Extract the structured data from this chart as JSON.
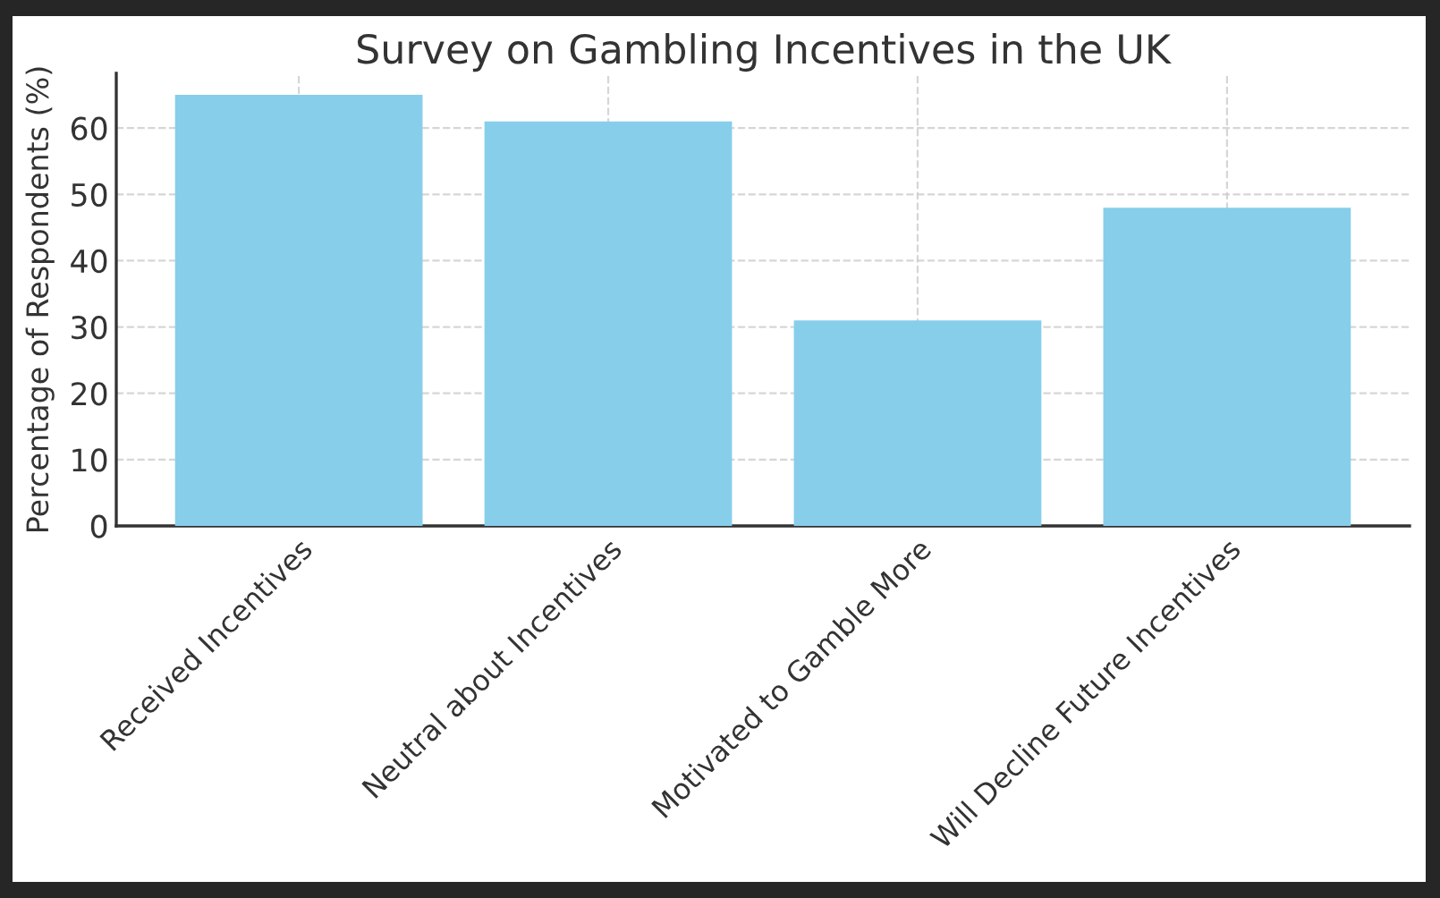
{
  "chart_data": {
    "type": "bar",
    "title": "Survey on Gambling Incentives in the UK",
    "ylabel": "Percentage of Respondents (%)",
    "categories": [
      "Received Incentives",
      "Neutral about Incentives",
      "Motivated to Gamble More",
      "Will Decline Future Incentives"
    ],
    "values": [
      65,
      61,
      31,
      48
    ],
    "color": "#87ceeb",
    "ylim": [
      0,
      68.25
    ],
    "yticks": [
      0,
      10,
      20,
      30,
      40,
      50,
      60
    ],
    "grid": true
  }
}
